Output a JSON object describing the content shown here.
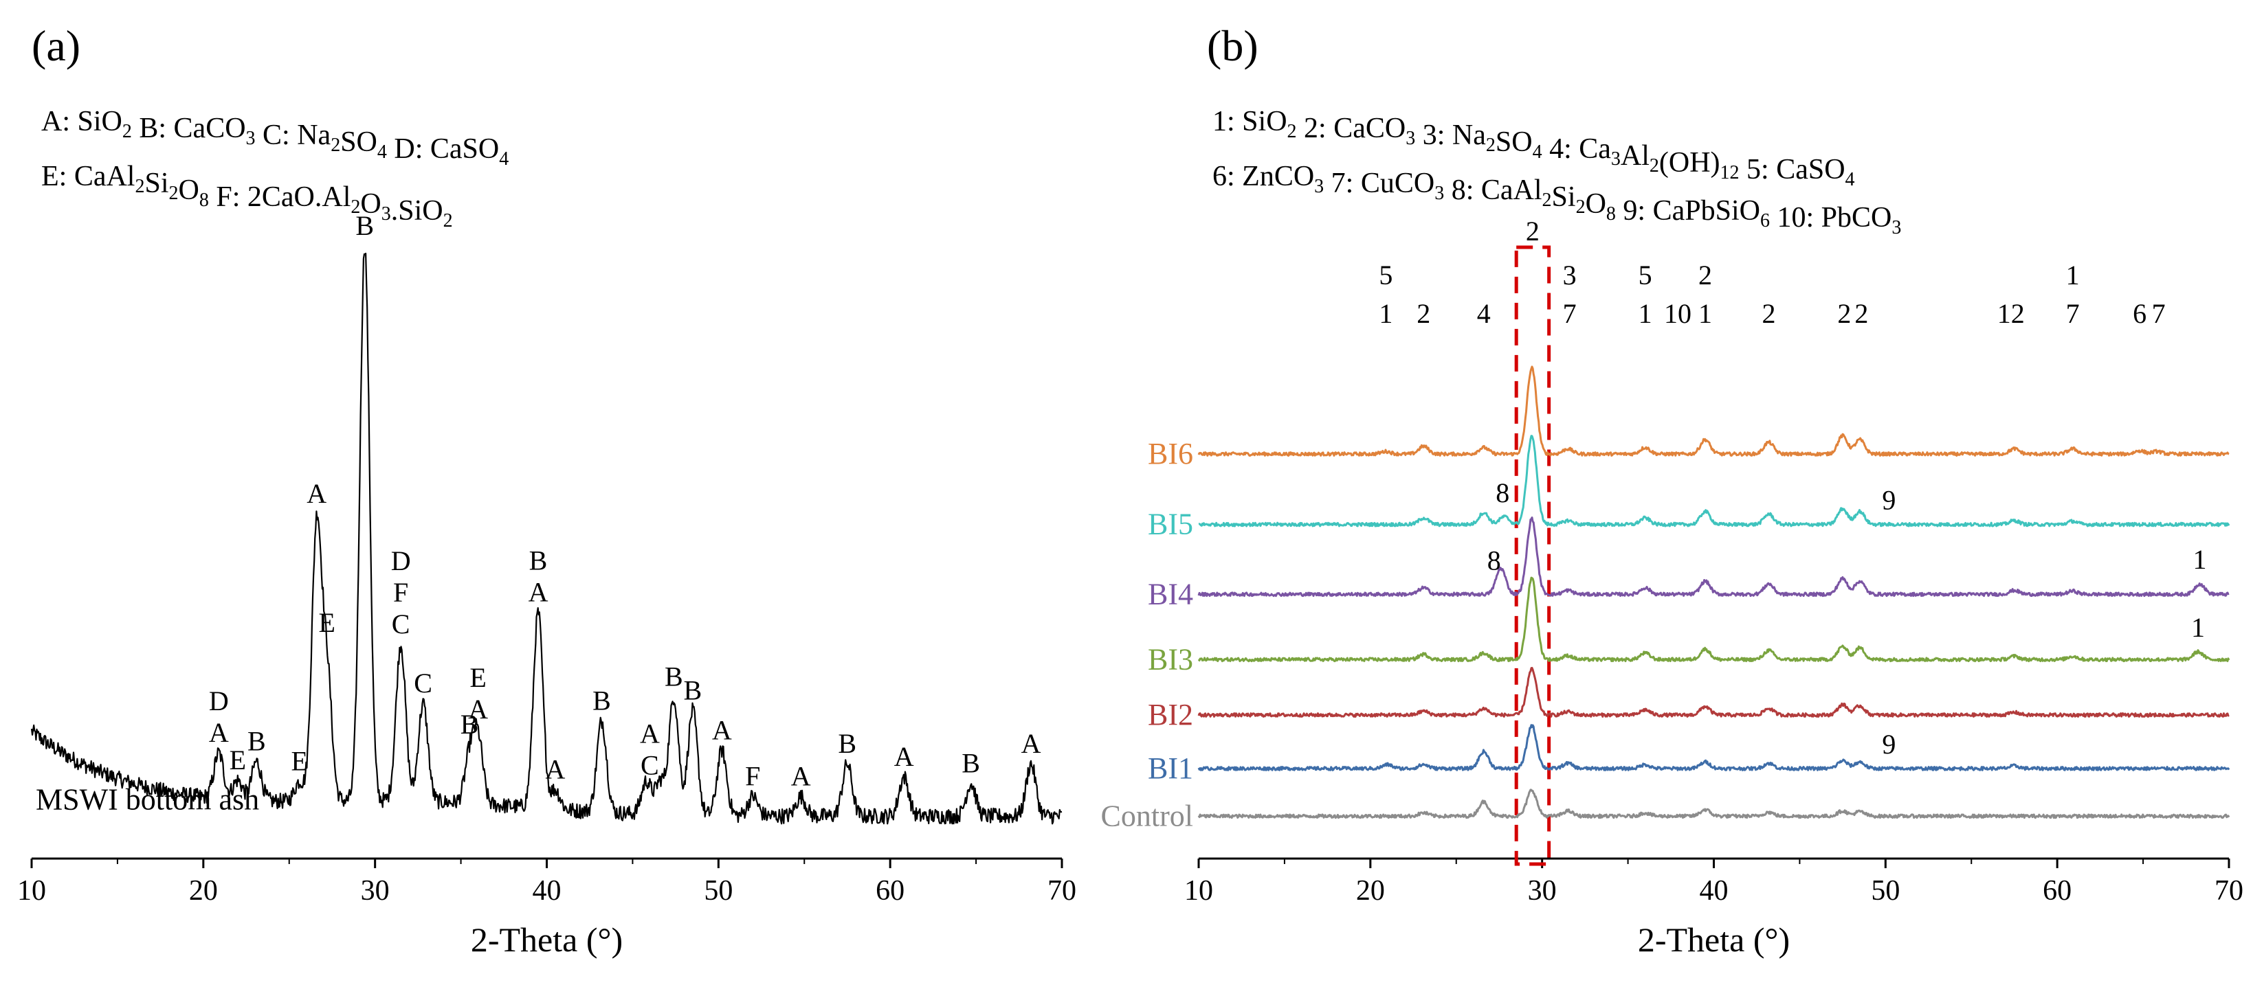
{
  "chart_data": [
    {
      "type": "line",
      "panel_label": "(a)",
      "xlabel": "2-Theta (°)",
      "ylabel": "",
      "xlim": [
        10,
        70
      ],
      "xticks": [
        10,
        20,
        30,
        40,
        50,
        60,
        70
      ],
      "tick_labels": [
        "10",
        "20",
        "30",
        "40",
        "50",
        "60",
        "70"
      ],
      "legend_lines": [
        [
          {
            "t": "A: SiO"
          },
          {
            "t": "2",
            "sub": true
          },
          {
            "t": "  B: CaCO"
          },
          {
            "t": "3",
            "sub": true
          },
          {
            "t": "  C: Na"
          },
          {
            "t": "2",
            "sub": true
          },
          {
            "t": "SO"
          },
          {
            "t": "4",
            "sub": true
          },
          {
            "t": "  D: CaSO"
          },
          {
            "t": "4",
            "sub": true
          }
        ],
        [
          {
            "t": "E: CaAl"
          },
          {
            "t": "2",
            "sub": true
          },
          {
            "t": "Si"
          },
          {
            "t": "2",
            "sub": true
          },
          {
            "t": "O"
          },
          {
            "t": "8",
            "sub": true
          },
          {
            "t": "  F: 2CaO.Al"
          },
          {
            "t": "2",
            "sub": true
          },
          {
            "t": "O"
          },
          {
            "t": "3",
            "sub": true
          },
          {
            "t": ".SiO"
          },
          {
            "t": "2",
            "sub": true
          }
        ]
      ],
      "series": [
        {
          "name": "MSWI bottom ash",
          "color": "#000000",
          "baseline": 0.065,
          "background": 0.13,
          "peaks": [
            [
              20.9,
              0.07
            ],
            [
              22.0,
              0.03
            ],
            [
              23.1,
              0.06
            ],
            [
              25.6,
              0.03
            ],
            [
              26.6,
              0.42
            ],
            [
              27.2,
              0.2
            ],
            [
              29.4,
              0.85
            ],
            [
              31.5,
              0.24
            ],
            [
              32.8,
              0.15
            ],
            [
              35.5,
              0.07
            ],
            [
              36.0,
              0.1
            ],
            [
              39.5,
              0.3
            ],
            [
              40.5,
              0.03
            ],
            [
              43.2,
              0.14
            ],
            [
              45.8,
              0.05
            ],
            [
              46.6,
              0.05
            ],
            [
              47.4,
              0.18
            ],
            [
              48.5,
              0.16
            ],
            [
              50.2,
              0.1
            ],
            [
              52.0,
              0.03
            ],
            [
              54.8,
              0.03
            ],
            [
              57.5,
              0.08
            ],
            [
              60.8,
              0.06
            ],
            [
              64.7,
              0.05
            ],
            [
              68.2,
              0.08
            ]
          ]
        }
      ],
      "peak_labels": [
        {
          "x": 20.9,
          "lines": [
            "D",
            "A"
          ]
        },
        {
          "x": 22.0,
          "lines": [
            "E"
          ]
        },
        {
          "x": 23.1,
          "lines": [
            "B"
          ]
        },
        {
          "x": 25.6,
          "lines": [
            "E"
          ]
        },
        {
          "x": 26.6,
          "lines": [
            "A"
          ]
        },
        {
          "x": 27.2,
          "lines": [
            "E"
          ]
        },
        {
          "x": 29.4,
          "lines": [
            "B"
          ]
        },
        {
          "x": 31.5,
          "lines": [
            "D",
            "F",
            "C"
          ]
        },
        {
          "x": 32.8,
          "lines": [
            "C"
          ]
        },
        {
          "x": 35.5,
          "lines": [
            "B"
          ]
        },
        {
          "x": 36.0,
          "lines": [
            "E",
            "A"
          ]
        },
        {
          "x": 39.5,
          "lines": [
            "B",
            "A"
          ]
        },
        {
          "x": 40.5,
          "lines": [
            "A"
          ]
        },
        {
          "x": 43.2,
          "lines": [
            "B"
          ]
        },
        {
          "x": 46.0,
          "lines": [
            "A",
            "C"
          ]
        },
        {
          "x": 47.4,
          "lines": [
            "B"
          ]
        },
        {
          "x": 48.5,
          "lines": [
            "B"
          ]
        },
        {
          "x": 50.2,
          "lines": [
            "A"
          ]
        },
        {
          "x": 52.0,
          "lines": [
            "F"
          ]
        },
        {
          "x": 54.8,
          "lines": [
            "A"
          ]
        },
        {
          "x": 57.5,
          "lines": [
            "B"
          ]
        },
        {
          "x": 60.8,
          "lines": [
            "A"
          ]
        },
        {
          "x": 64.7,
          "lines": [
            "B"
          ]
        },
        {
          "x": 68.2,
          "lines": [
            "A"
          ]
        }
      ]
    },
    {
      "type": "line",
      "panel_label": "(b)",
      "xlabel": "2-Theta (°)",
      "ylabel": "",
      "xlim": [
        10,
        70
      ],
      "xticks": [
        10,
        20,
        30,
        40,
        50,
        60,
        70
      ],
      "tick_labels": [
        "10",
        "20",
        "30",
        "40",
        "50",
        "60",
        "70"
      ],
      "legend_lines": [
        [
          {
            "t": "1: SiO"
          },
          {
            "t": "2",
            "sub": true
          },
          {
            "t": "   2: CaCO"
          },
          {
            "t": "3",
            "sub": true
          },
          {
            "t": "  3: Na"
          },
          {
            "t": "2",
            "sub": true
          },
          {
            "t": "SO"
          },
          {
            "t": "4",
            "sub": true
          },
          {
            "t": "  4: Ca"
          },
          {
            "t": "3",
            "sub": true
          },
          {
            "t": "Al"
          },
          {
            "t": "2",
            "sub": true
          },
          {
            "t": "(OH)"
          },
          {
            "t": "12",
            "sub": true
          },
          {
            "t": "  5: CaSO"
          },
          {
            "t": "4",
            "sub": true
          }
        ],
        [
          {
            "t": "6: ZnCO"
          },
          {
            "t": "3",
            "sub": true
          },
          {
            "t": " 7: CuCO"
          },
          {
            "t": "3",
            "sub": true
          },
          {
            "t": " 8: CaAl"
          },
          {
            "t": "2",
            "sub": true
          },
          {
            "t": "Si"
          },
          {
            "t": "2",
            "sub": true
          },
          {
            "t": "O"
          },
          {
            "t": "8",
            "sub": true
          },
          {
            "t": " 9: CaPbSiO"
          },
          {
            "t": "6",
            "sub": true
          },
          {
            "t": "  10: PbCO"
          },
          {
            "t": "3",
            "sub": true
          }
        ]
      ],
      "highlight": {
        "x0": 28.5,
        "x1": 30.4,
        "label": "2",
        "color": "#d40000"
      },
      "series": [
        {
          "name": "BI6",
          "color": "#e0823a",
          "baseline": 0.62,
          "peaks": [
            [
              20.9,
              0.004
            ],
            [
              23.1,
              0.012
            ],
            [
              26.6,
              0.01
            ],
            [
              29.4,
              0.132
            ],
            [
              31.5,
              0.008
            ],
            [
              36.0,
              0.01
            ],
            [
              39.5,
              0.022
            ],
            [
              43.2,
              0.018
            ],
            [
              47.5,
              0.028
            ],
            [
              48.5,
              0.022
            ],
            [
              57.5,
              0.008
            ],
            [
              60.9,
              0.008
            ],
            [
              64.8,
              0.005
            ],
            [
              65.8,
              0.004
            ]
          ]
        },
        {
          "name": "BI5",
          "color": "#3fc3bd",
          "baseline": 0.512,
          "peaks": [
            [
              23.1,
              0.01
            ],
            [
              26.6,
              0.018
            ],
            [
              27.8,
              0.012
            ],
            [
              29.4,
              0.136
            ],
            [
              31.5,
              0.006
            ],
            [
              36.0,
              0.01
            ],
            [
              39.5,
              0.02
            ],
            [
              43.2,
              0.016
            ],
            [
              47.5,
              0.024
            ],
            [
              48.5,
              0.02
            ],
            [
              57.5,
              0.006
            ],
            [
              60.9,
              0.005
            ]
          ]
        },
        {
          "name": "BI4",
          "color": "#7a54a3",
          "baseline": 0.405,
          "peaks": [
            [
              23.1,
              0.01
            ],
            [
              27.6,
              0.04
            ],
            [
              29.4,
              0.116
            ],
            [
              31.5,
              0.006
            ],
            [
              36.0,
              0.01
            ],
            [
              39.5,
              0.02
            ],
            [
              43.2,
              0.016
            ],
            [
              47.5,
              0.024
            ],
            [
              48.5,
              0.02
            ],
            [
              57.5,
              0.006
            ],
            [
              60.9,
              0.005
            ],
            [
              68.3,
              0.016
            ]
          ]
        },
        {
          "name": "BI3",
          "color": "#7aa43f",
          "baseline": 0.305,
          "peaks": [
            [
              23.1,
              0.008
            ],
            [
              26.6,
              0.01
            ],
            [
              29.4,
              0.126
            ],
            [
              31.5,
              0.006
            ],
            [
              36.0,
              0.01
            ],
            [
              39.5,
              0.016
            ],
            [
              43.2,
              0.014
            ],
            [
              47.5,
              0.02
            ],
            [
              48.5,
              0.018
            ],
            [
              57.5,
              0.005
            ],
            [
              60.9,
              0.005
            ],
            [
              68.2,
              0.012
            ]
          ]
        },
        {
          "name": "BI2",
          "color": "#b23b3b",
          "baseline": 0.22,
          "peaks": [
            [
              23.1,
              0.006
            ],
            [
              26.6,
              0.01
            ],
            [
              29.4,
              0.07
            ],
            [
              31.5,
              0.005
            ],
            [
              36.0,
              0.008
            ],
            [
              39.5,
              0.013
            ],
            [
              43.2,
              0.01
            ],
            [
              47.5,
              0.016
            ],
            [
              48.5,
              0.014
            ],
            [
              57.5,
              0.004
            ]
          ]
        },
        {
          "name": "BI1",
          "color": "#3e6da8",
          "baseline": 0.138,
          "peaks": [
            [
              21.0,
              0.006
            ],
            [
              23.1,
              0.006
            ],
            [
              26.6,
              0.026
            ],
            [
              29.4,
              0.066
            ],
            [
              31.5,
              0.008
            ],
            [
              36.0,
              0.006
            ],
            [
              39.5,
              0.01
            ],
            [
              43.2,
              0.008
            ],
            [
              47.5,
              0.012
            ],
            [
              48.5,
              0.01
            ],
            [
              57.5,
              0.004
            ]
          ]
        },
        {
          "name": "Control",
          "color": "#8c8c8c",
          "baseline": 0.065,
          "peaks": [
            [
              23.1,
              0.005
            ],
            [
              26.6,
              0.022
            ],
            [
              29.4,
              0.04
            ],
            [
              31.5,
              0.008
            ],
            [
              36.0,
              0.005
            ],
            [
              39.5,
              0.01
            ],
            [
              43.2,
              0.006
            ],
            [
              47.5,
              0.008
            ],
            [
              48.5,
              0.007
            ]
          ]
        }
      ],
      "peak_labels": [
        {
          "x": 20.9,
          "lines": [
            "5",
            "1"
          ]
        },
        {
          "x": 23.1,
          "lines": [
            "2"
          ]
        },
        {
          "x": 26.6,
          "lines": [
            "4"
          ]
        },
        {
          "x": 31.6,
          "lines": [
            "3",
            "7"
          ]
        },
        {
          "x": 36.0,
          "lines": [
            "5",
            "1"
          ]
        },
        {
          "x": 37.9,
          "lines": [
            "10"
          ]
        },
        {
          "x": 39.5,
          "lines": [
            "2",
            "1"
          ]
        },
        {
          "x": 43.2,
          "lines": [
            "2"
          ]
        },
        {
          "x": 47.6,
          "lines": [
            "2"
          ]
        },
        {
          "x": 48.6,
          "lines": [
            "2"
          ]
        },
        {
          "x": 56.9,
          "lines": [
            "1"
          ]
        },
        {
          "x": 57.7,
          "lines": [
            "2"
          ]
        },
        {
          "x": 60.9,
          "lines": [
            "1",
            "7"
          ]
        },
        {
          "x": 64.8,
          "lines": [
            "6"
          ]
        },
        {
          "x": 65.9,
          "lines": [
            "7"
          ]
        }
      ],
      "extra_labels": [
        {
          "series": "BI5",
          "x": 27.7,
          "text": "8"
        },
        {
          "series": "BI5",
          "x": 50.2,
          "text": "9"
        },
        {
          "series": "BI4",
          "x": 27.2,
          "text": "8"
        },
        {
          "series": "BI4",
          "x": 68.3,
          "text": "1"
        },
        {
          "series": "BI3",
          "x": 68.2,
          "text": "1"
        },
        {
          "series": "BI1",
          "x": 50.2,
          "text": "9"
        }
      ]
    }
  ]
}
